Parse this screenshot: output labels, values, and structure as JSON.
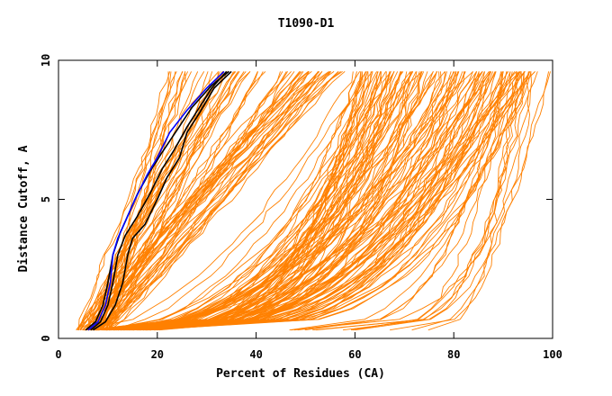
{
  "chart_data": {
    "type": "line",
    "title": "T1090-D1",
    "xlabel": "Percent of Residues (CA)",
    "ylabel": "Distance Cutoff, A",
    "xlim": [
      0,
      100
    ],
    "ylim": [
      0,
      10
    ],
    "x_ticks": [
      0,
      20,
      40,
      60,
      80,
      100
    ],
    "y_ticks": [
      0,
      5,
      10
    ],
    "grid": false,
    "legend": "none",
    "colors": {
      "models": "#ff8000",
      "highlight_black": "#000000",
      "highlight_blue": "#0000ff"
    },
    "series": [
      {
        "color": "#0000ff",
        "x": [
          6,
          8,
          9.5,
          10.5,
          11,
          12,
          13.5,
          15.5,
          18,
          20,
          22.5,
          26,
          30,
          33.5
        ],
        "y": [
          0.3,
          0.6,
          1.2,
          2,
          3,
          3.6,
          4.2,
          5,
          5.9,
          6.5,
          7.4,
          8.2,
          9,
          9.6
        ]
      },
      {
        "color": "#000000",
        "x": [
          5.5,
          7.5,
          9,
          10,
          11,
          12.5,
          14,
          16,
          18.5,
          21,
          24,
          27,
          31,
          34.5
        ],
        "y": [
          0.3,
          0.6,
          1.2,
          2,
          3,
          3.8,
          4.4,
          5.2,
          6,
          6.7,
          7.5,
          8.3,
          9.1,
          9.6
        ]
      },
      {
        "color": "#000000",
        "x": [
          6.5,
          8.5,
          10,
          11,
          12,
          13.5,
          16,
          18.5,
          21,
          23.5,
          26,
          28.5,
          31,
          34
        ],
        "y": [
          0.3,
          0.6,
          1.2,
          2,
          3,
          3.7,
          4.4,
          5.2,
          6.1,
          6.8,
          7.6,
          8.3,
          9,
          9.6
        ]
      },
      {
        "color": "#000000",
        "x": [
          7,
          9.5,
          11.5,
          13,
          14,
          15,
          17.5,
          20,
          22,
          24.5,
          26,
          28.5,
          31.5,
          35
        ],
        "y": [
          0.3,
          0.6,
          1.2,
          2,
          3,
          3.6,
          4.1,
          5,
          5.8,
          6.5,
          7.4,
          8.1,
          9,
          9.6
        ]
      }
    ]
  }
}
